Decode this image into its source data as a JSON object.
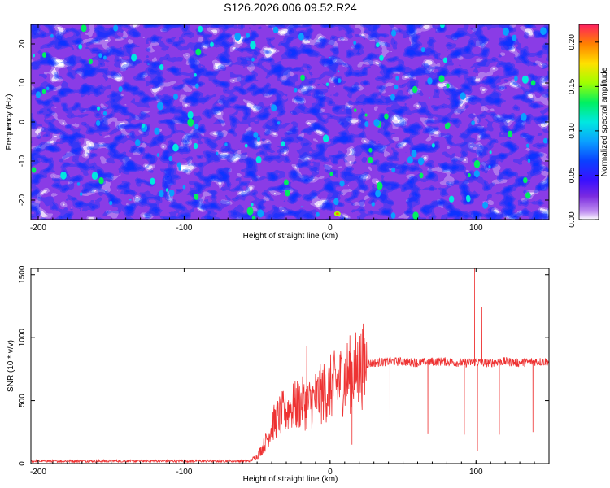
{
  "title": "S126.2026.006.09.52.R24",
  "chart_data": [
    {
      "type": "heatmap",
      "xlabel": "Height of straight line (km)",
      "ylabel": "Frequency (Hz)",
      "xlim": [
        -205,
        150
      ],
      "ylim": [
        -25,
        25
      ],
      "xticks": [
        -200,
        -100,
        0,
        100
      ],
      "yticks": [
        -20,
        -10,
        0,
        10,
        20
      ],
      "colorbar": {
        "label": "Normalized spectral amplitude",
        "range": [
          0,
          0.22
        ],
        "ticks": [
          "0.00",
          "0.05",
          "0.10",
          "0.15",
          "0.20"
        ],
        "colormap": [
          "#ffffff",
          "#b070e8",
          "#7a2ae0",
          "#3a10ff",
          "#0a40ff",
          "#0aa0ff",
          "#00e8e0",
          "#00f060",
          "#a0ff00",
          "#ffe000",
          "#ff8000",
          "#ff2040"
        ]
      },
      "summary": {
        "typical_amplitude": 0.05,
        "peak_amplitude": 0.18,
        "peak_location": {
          "x": 5,
          "y": -23.5
        }
      }
    },
    {
      "type": "line",
      "xlabel": "Height of straight line (km)",
      "ylabel": "SNR (10 * v/v)",
      "xlim": [
        -205,
        150
      ],
      "ylim": [
        0,
        1550
      ],
      "xticks": [
        -200,
        -100,
        0,
        100
      ],
      "yticks": [
        0,
        500,
        1000,
        1500
      ],
      "grid": false,
      "series": [
        {
          "color": "#ee3333",
          "x": [
            -205,
            -100,
            -55,
            -50,
            -45,
            -40,
            -35,
            -30,
            -25,
            -20,
            -15,
            -10,
            -5,
            0,
            5,
            10,
            15,
            20,
            25,
            30,
            40,
            50,
            60,
            70,
            80,
            90,
            95,
            100,
            102,
            105,
            110,
            115,
            120,
            130,
            140,
            150
          ],
          "values": [
            20,
            20,
            20,
            60,
            150,
            300,
            380,
            420,
            450,
            480,
            470,
            520,
            560,
            600,
            640,
            680,
            720,
            760,
            790,
            800,
            810,
            810,
            800,
            810,
            810,
            800,
            800,
            810,
            805,
            800,
            800,
            810,
            810,
            800,
            810,
            810
          ]
        }
      ],
      "spikes_up": [
        {
          "x": -16,
          "y": 930
        },
        {
          "x": 99,
          "y": 1560
        },
        {
          "x": 104,
          "y": 1240
        }
      ],
      "dips": [
        {
          "x": 15,
          "y": 150
        },
        {
          "x": 41,
          "y": 230
        },
        {
          "x": 67,
          "y": 240
        },
        {
          "x": 92,
          "y": 230
        },
        {
          "x": 101,
          "y": 100
        },
        {
          "x": 116,
          "y": 230
        },
        {
          "x": 139,
          "y": 250
        }
      ]
    }
  ]
}
